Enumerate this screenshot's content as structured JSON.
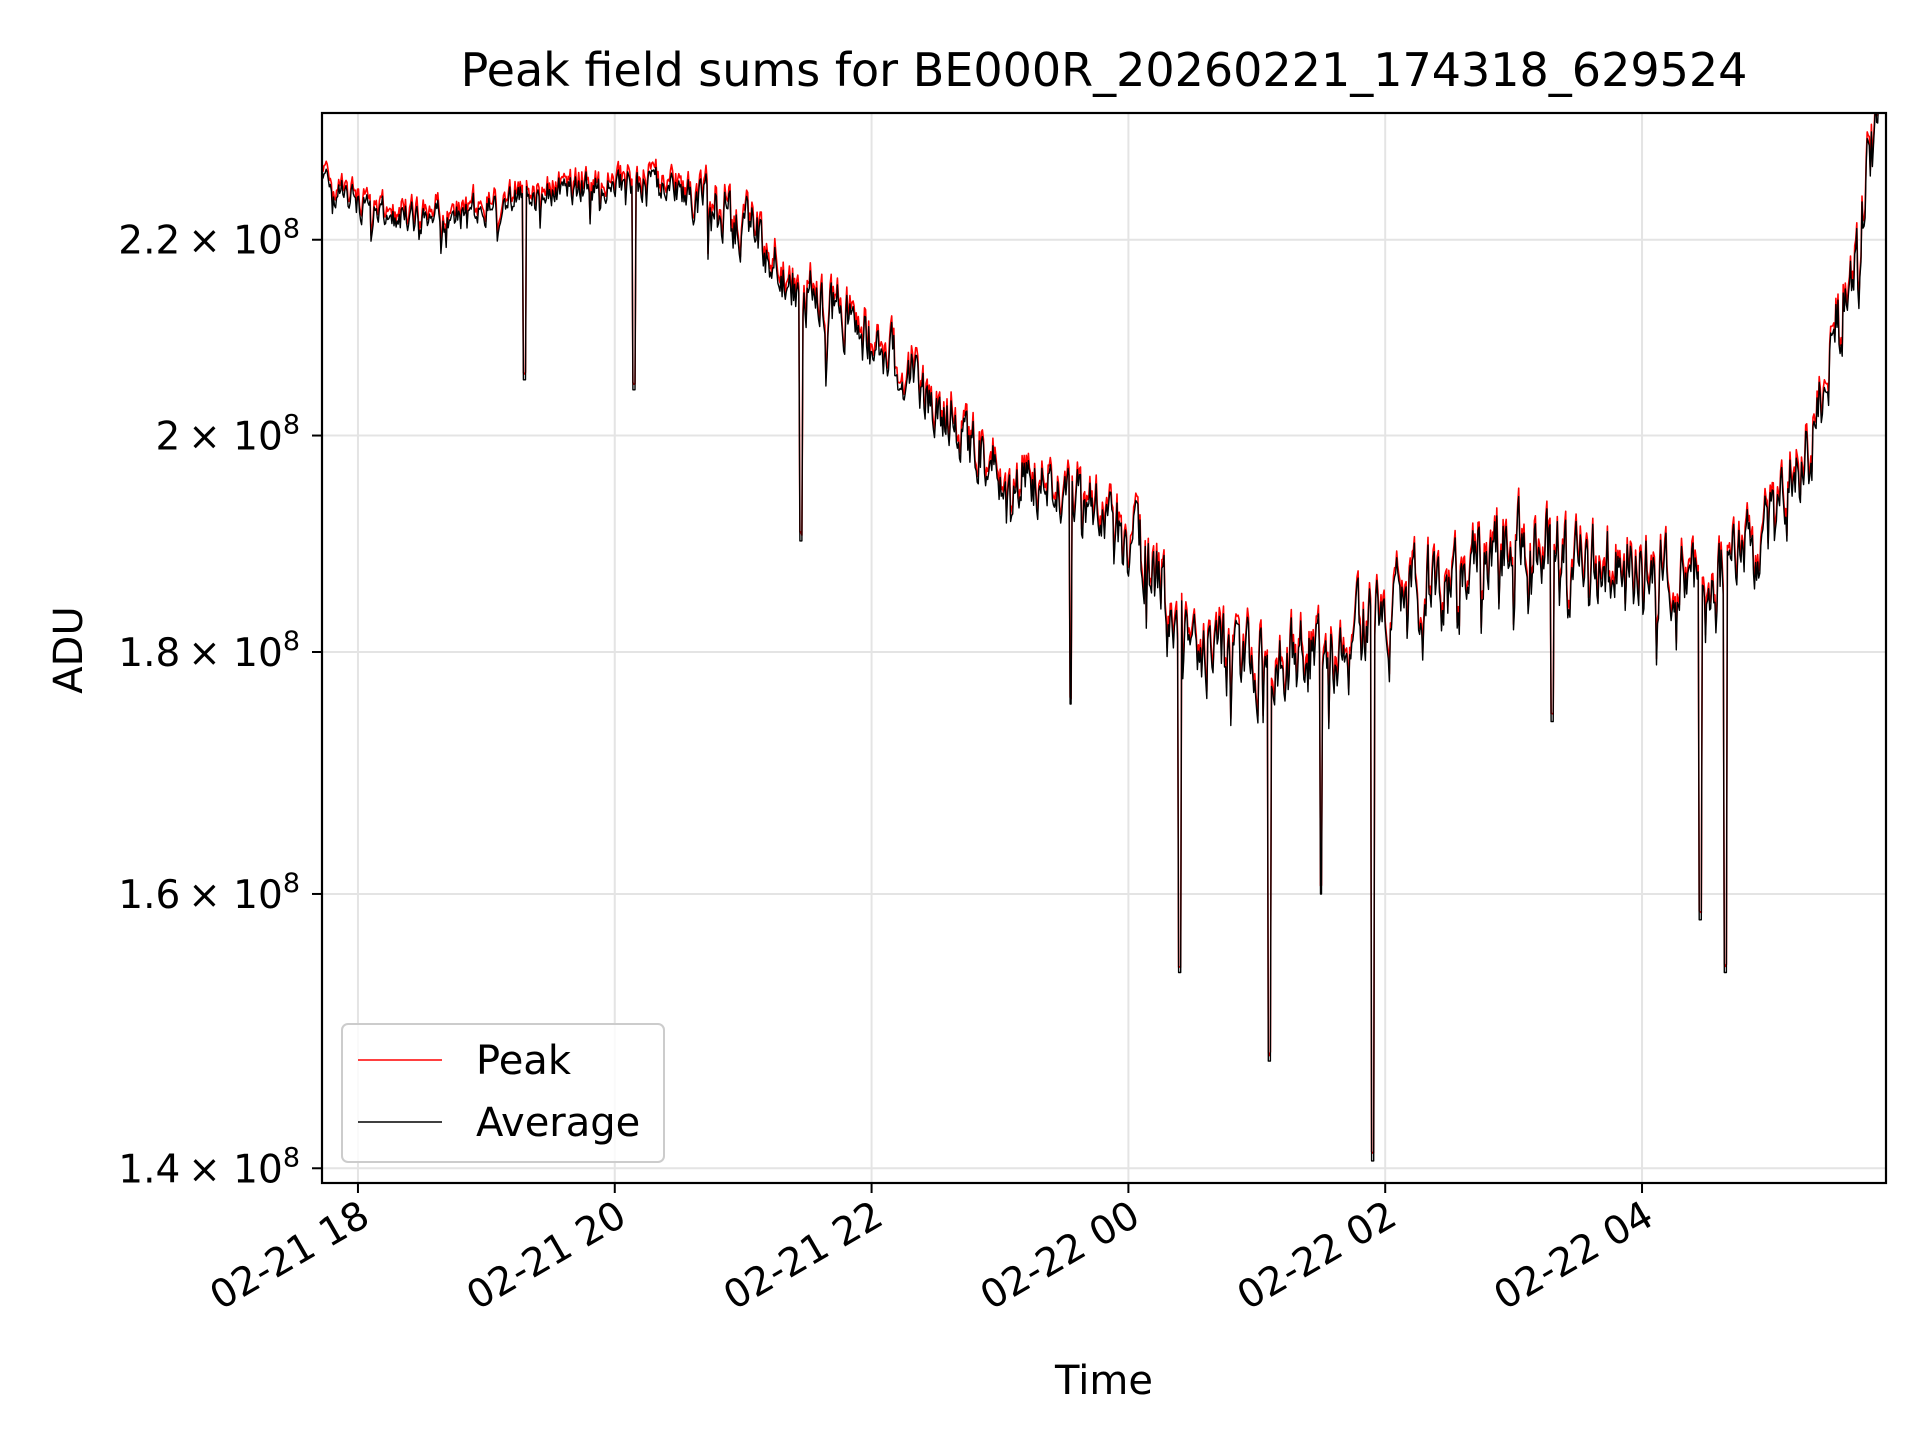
{
  "chart_data": {
    "type": "line",
    "title": "Peak field sums for BE000R_20260221_174318_629524",
    "xlabel": "Time",
    "ylabel": "ADU",
    "yscale": "log",
    "ylim": [
      139000000,
      234000000
    ],
    "xlim_hours": [
      -0.28,
      11.9
    ],
    "grid": true,
    "legend_position": "lower-left",
    "x_ticks": [
      {
        "hours": 0,
        "label": "02-21 18"
      },
      {
        "hours": 2,
        "label": "02-21 20"
      },
      {
        "hours": 4,
        "label": "02-21 22"
      },
      {
        "hours": 6,
        "label": "02-22 00"
      },
      {
        "hours": 8,
        "label": "02-22 02"
      },
      {
        "hours": 10,
        "label": "02-22 04"
      }
    ],
    "y_ticks": [
      {
        "value": 140000000,
        "mantissa": "1.4"
      },
      {
        "value": 160000000,
        "mantissa": "1.6"
      },
      {
        "value": 180000000,
        "mantissa": "1.8"
      },
      {
        "value": 200000000,
        "mantissa": "2"
      },
      {
        "value": 220000000,
        "mantissa": "2.2"
      }
    ],
    "y_tick_multiplier": "× 10",
    "y_tick_exponent": "8",
    "x_hours_note": "hours relative to 02-21 18:00",
    "series": [
      {
        "name": "Peak",
        "color": "#ff0000"
      },
      {
        "name": "Average",
        "color": "#000000"
      }
    ],
    "trend_hours": [
      -0.28,
      0.0,
      0.5,
      1.0,
      1.5,
      2.0,
      2.5,
      3.0,
      3.5,
      4.0,
      4.5,
      5.0,
      5.5,
      6.0,
      6.5,
      7.0,
      7.5,
      8.0,
      8.5,
      9.0,
      9.5,
      10.0,
      10.5,
      11.0,
      11.3,
      11.6,
      11.85
    ],
    "trend_values": [
      226500000,
      223500000,
      222000000,
      223500000,
      225000000,
      226500000,
      225500000,
      221500000,
      214000000,
      210000000,
      203000000,
      196500000,
      195000000,
      191000000,
      180500000,
      178500000,
      180000000,
      183500000,
      188000000,
      190500000,
      188500000,
      187500000,
      186000000,
      190500000,
      198000000,
      215000000,
      234000000
    ],
    "dips": [
      {
        "hours": 1.3,
        "value": 205500000
      },
      {
        "hours": 2.15,
        "value": 204500000
      },
      {
        "hours": 3.45,
        "value": 190000000
      },
      {
        "hours": 5.55,
        "value": 175500000
      },
      {
        "hours": 6.4,
        "value": 154000000
      },
      {
        "hours": 7.1,
        "value": 147500000
      },
      {
        "hours": 7.5,
        "value": 160000000
      },
      {
        "hours": 7.9,
        "value": 140500000
      },
      {
        "hours": 9.3,
        "value": 174000000
      },
      {
        "hours": 10.45,
        "value": 158000000
      },
      {
        "hours": 10.65,
        "value": 154000000
      }
    ]
  }
}
